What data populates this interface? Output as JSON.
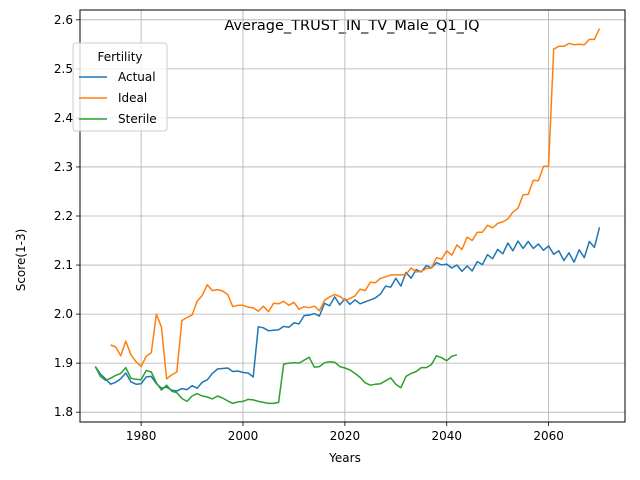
{
  "chart_data": {
    "type": "line",
    "title": "Average_TRUST_IN_TV_Male_Q1_IQ",
    "xlabel": "Years",
    "ylabel": "Score(1-3)",
    "xlim": [
      1968,
      2075
    ],
    "ylim": [
      1.78,
      2.62
    ],
    "xticks": [
      "1980",
      "2000",
      "2020",
      "2040",
      "2060"
    ],
    "xtick_values": [
      1980,
      2000,
      2020,
      2040,
      2060
    ],
    "yticks": [
      "1.8",
      "1.9",
      "2.0",
      "2.1",
      "2.2",
      "2.3",
      "2.4",
      "2.5",
      "2.6"
    ],
    "ytick_values": [
      1.8,
      1.9,
      2.0,
      2.1,
      2.2,
      2.3,
      2.4,
      2.5,
      2.6
    ],
    "grid": true,
    "legend": {
      "title": "Fertility",
      "position": "top-left"
    },
    "series": [
      {
        "name": "Actual",
        "color": "#1f77b4",
        "points": [
          [
            1971,
            1.893
          ],
          [
            1972,
            1.878
          ],
          [
            1973,
            1.868
          ],
          [
            1974,
            1.857
          ],
          [
            1975,
            1.861
          ],
          [
            1976,
            1.868
          ],
          [
            1977,
            1.88
          ],
          [
            1978,
            1.862
          ],
          [
            1979,
            1.857
          ],
          [
            1980,
            1.858
          ],
          [
            1981,
            1.872
          ],
          [
            1982,
            1.873
          ],
          [
            1983,
            1.858
          ],
          [
            1984,
            1.849
          ],
          [
            1985,
            1.851
          ],
          [
            1986,
            1.845
          ],
          [
            1987,
            1.843
          ],
          [
            1988,
            1.848
          ],
          [
            1989,
            1.846
          ],
          [
            1990,
            1.854
          ],
          [
            1991,
            1.849
          ],
          [
            1992,
            1.861
          ],
          [
            1993,
            1.866
          ],
          [
            1994,
            1.879
          ],
          [
            1995,
            1.888
          ],
          [
            1996,
            1.889
          ],
          [
            1997,
            1.89
          ],
          [
            1998,
            1.883
          ],
          [
            1999,
            1.884
          ],
          [
            2000,
            1.881
          ],
          [
            2001,
            1.88
          ],
          [
            2002,
            1.872
          ],
          [
            2003,
            1.974
          ],
          [
            2004,
            1.972
          ],
          [
            2005,
            1.966
          ],
          [
            2006,
            1.967
          ],
          [
            2007,
            1.968
          ],
          [
            2008,
            1.975
          ],
          [
            2009,
            1.973
          ],
          [
            2010,
            1.982
          ],
          [
            2011,
            1.98
          ],
          [
            2012,
            1.997
          ],
          [
            2013,
            1.998
          ],
          [
            2014,
            2.001
          ],
          [
            2015,
            1.996
          ],
          [
            2016,
            2.022
          ],
          [
            2017,
            2.017
          ],
          [
            2018,
            2.035
          ],
          [
            2019,
            2.019
          ],
          [
            2020,
            2.031
          ],
          [
            2021,
            2.02
          ],
          [
            2022,
            2.029
          ],
          [
            2023,
            2.021
          ],
          [
            2024,
            2.025
          ],
          [
            2025,
            2.029
          ],
          [
            2026,
            2.033
          ],
          [
            2027,
            2.041
          ],
          [
            2028,
            2.057
          ],
          [
            2029,
            2.055
          ],
          [
            2030,
            2.073
          ],
          [
            2031,
            2.057
          ],
          [
            2032,
            2.085
          ],
          [
            2033,
            2.073
          ],
          [
            2034,
            2.091
          ],
          [
            2035,
            2.086
          ],
          [
            2036,
            2.099
          ],
          [
            2037,
            2.094
          ],
          [
            2038,
            2.105
          ],
          [
            2039,
            2.1
          ],
          [
            2040,
            2.102
          ],
          [
            2041,
            2.094
          ],
          [
            2042,
            2.1
          ],
          [
            2043,
            2.087
          ],
          [
            2044,
            2.098
          ],
          [
            2045,
            2.088
          ],
          [
            2046,
            2.107
          ],
          [
            2047,
            2.101
          ],
          [
            2048,
            2.121
          ],
          [
            2049,
            2.113
          ],
          [
            2050,
            2.132
          ],
          [
            2051,
            2.123
          ],
          [
            2052,
            2.145
          ],
          [
            2053,
            2.129
          ],
          [
            2054,
            2.149
          ],
          [
            2055,
            2.134
          ],
          [
            2056,
            2.148
          ],
          [
            2057,
            2.134
          ],
          [
            2058,
            2.143
          ],
          [
            2059,
            2.13
          ],
          [
            2060,
            2.139
          ],
          [
            2061,
            2.122
          ],
          [
            2062,
            2.129
          ],
          [
            2063,
            2.109
          ],
          [
            2064,
            2.125
          ],
          [
            2065,
            2.106
          ],
          [
            2066,
            2.131
          ],
          [
            2067,
            2.115
          ],
          [
            2068,
            2.148
          ],
          [
            2069,
            2.136
          ],
          [
            2070,
            2.177
          ]
        ]
      },
      {
        "name": "Ideal",
        "color": "#ff7f0e",
        "points": [
          [
            1974,
            1.937
          ],
          [
            1975,
            1.933
          ],
          [
            1976,
            1.915
          ],
          [
            1977,
            1.945
          ],
          [
            1978,
            1.917
          ],
          [
            1979,
            1.903
          ],
          [
            1980,
            1.893
          ],
          [
            1981,
            1.914
          ],
          [
            1982,
            1.921
          ],
          [
            1983,
            2.0
          ],
          [
            1984,
            1.973
          ],
          [
            1985,
            1.868
          ],
          [
            1986,
            1.876
          ],
          [
            1987,
            1.882
          ],
          [
            1988,
            1.987
          ],
          [
            1989,
            1.993
          ],
          [
            1990,
            1.998
          ],
          [
            1991,
            2.026
          ],
          [
            1992,
            2.038
          ],
          [
            1993,
            2.06
          ],
          [
            1994,
            2.048
          ],
          [
            1995,
            2.05
          ],
          [
            1996,
            2.047
          ],
          [
            1997,
            2.04
          ],
          [
            1998,
            2.015
          ],
          [
            1999,
            2.018
          ],
          [
            2000,
            2.018
          ],
          [
            2001,
            2.014
          ],
          [
            2002,
            2.013
          ],
          [
            2003,
            2.006
          ],
          [
            2004,
            2.016
          ],
          [
            2005,
            2.005
          ],
          [
            2006,
            2.022
          ],
          [
            2007,
            2.021
          ],
          [
            2008,
            2.026
          ],
          [
            2009,
            2.018
          ],
          [
            2010,
            2.024
          ],
          [
            2011,
            2.01
          ],
          [
            2012,
            2.015
          ],
          [
            2013,
            2.013
          ],
          [
            2014,
            2.016
          ],
          [
            2015,
            2.007
          ],
          [
            2016,
            2.028
          ],
          [
            2017,
            2.035
          ],
          [
            2018,
            2.04
          ],
          [
            2019,
            2.036
          ],
          [
            2020,
            2.028
          ],
          [
            2021,
            2.032
          ],
          [
            2022,
            2.037
          ],
          [
            2023,
            2.051
          ],
          [
            2024,
            2.048
          ],
          [
            2025,
            2.065
          ],
          [
            2026,
            2.064
          ],
          [
            2027,
            2.073
          ],
          [
            2028,
            2.076
          ],
          [
            2029,
            2.08
          ],
          [
            2030,
            2.08
          ],
          [
            2031,
            2.08
          ],
          [
            2032,
            2.081
          ],
          [
            2033,
            2.094
          ],
          [
            2034,
            2.086
          ],
          [
            2035,
            2.087
          ],
          [
            2036,
            2.093
          ],
          [
            2037,
            2.094
          ],
          [
            2038,
            2.115
          ],
          [
            2039,
            2.112
          ],
          [
            2040,
            2.129
          ],
          [
            2041,
            2.12
          ],
          [
            2042,
            2.141
          ],
          [
            2043,
            2.132
          ],
          [
            2044,
            2.157
          ],
          [
            2045,
            2.15
          ],
          [
            2046,
            2.167
          ],
          [
            2047,
            2.167
          ],
          [
            2048,
            2.181
          ],
          [
            2049,
            2.176
          ],
          [
            2050,
            2.185
          ],
          [
            2051,
            2.188
          ],
          [
            2052,
            2.194
          ],
          [
            2053,
            2.208
          ],
          [
            2054,
            2.216
          ],
          [
            2055,
            2.243
          ],
          [
            2056,
            2.244
          ],
          [
            2057,
            2.273
          ],
          [
            2058,
            2.272
          ],
          [
            2059,
            2.301
          ],
          [
            2060,
            2.302
          ],
          [
            2061,
            2.54
          ],
          [
            2062,
            2.546
          ],
          [
            2063,
            2.546
          ],
          [
            2064,
            2.552
          ],
          [
            2065,
            2.549
          ],
          [
            2066,
            2.55
          ],
          [
            2067,
            2.549
          ],
          [
            2068,
            2.56
          ],
          [
            2069,
            2.56
          ],
          [
            2070,
            2.582
          ]
        ]
      },
      {
        "name": "Sterile",
        "color": "#2ca02c",
        "points": [
          [
            1971,
            1.893
          ],
          [
            1972,
            1.873
          ],
          [
            1973,
            1.865
          ],
          [
            1974,
            1.869
          ],
          [
            1975,
            1.875
          ],
          [
            1976,
            1.879
          ],
          [
            1977,
            1.891
          ],
          [
            1978,
            1.869
          ],
          [
            1979,
            1.867
          ],
          [
            1980,
            1.866
          ],
          [
            1981,
            1.885
          ],
          [
            1982,
            1.882
          ],
          [
            1983,
            1.86
          ],
          [
            1984,
            1.845
          ],
          [
            1985,
            1.855
          ],
          [
            1986,
            1.843
          ],
          [
            1987,
            1.84
          ],
          [
            1988,
            1.828
          ],
          [
            1989,
            1.822
          ],
          [
            1990,
            1.833
          ],
          [
            1991,
            1.838
          ],
          [
            1992,
            1.833
          ],
          [
            1993,
            1.831
          ],
          [
            1994,
            1.827
          ],
          [
            1995,
            1.833
          ],
          [
            1996,
            1.829
          ],
          [
            1997,
            1.823
          ],
          [
            1998,
            1.818
          ],
          [
            1999,
            1.821
          ],
          [
            2000,
            1.822
          ],
          [
            2001,
            1.826
          ],
          [
            2002,
            1.825
          ],
          [
            2003,
            1.822
          ],
          [
            2004,
            1.82
          ],
          [
            2005,
            1.818
          ],
          [
            2006,
            1.818
          ],
          [
            2007,
            1.82
          ],
          [
            2008,
            1.898
          ],
          [
            2009,
            1.9
          ],
          [
            2010,
            1.901
          ],
          [
            2011,
            1.9
          ],
          [
            2012,
            1.906
          ],
          [
            2013,
            1.912
          ],
          [
            2014,
            1.892
          ],
          [
            2015,
            1.893
          ],
          [
            2016,
            1.901
          ],
          [
            2017,
            1.903
          ],
          [
            2018,
            1.902
          ],
          [
            2019,
            1.893
          ],
          [
            2020,
            1.89
          ],
          [
            2021,
            1.886
          ],
          [
            2022,
            1.879
          ],
          [
            2023,
            1.871
          ],
          [
            2024,
            1.86
          ],
          [
            2025,
            1.855
          ],
          [
            2026,
            1.857
          ],
          [
            2027,
            1.858
          ],
          [
            2028,
            1.864
          ],
          [
            2029,
            1.87
          ],
          [
            2030,
            1.857
          ],
          [
            2031,
            1.85
          ],
          [
            2032,
            1.873
          ],
          [
            2033,
            1.879
          ],
          [
            2034,
            1.883
          ],
          [
            2035,
            1.891
          ],
          [
            2036,
            1.891
          ],
          [
            2037,
            1.897
          ],
          [
            2038,
            1.915
          ],
          [
            2039,
            1.911
          ],
          [
            2040,
            1.905
          ],
          [
            2041,
            1.914
          ],
          [
            2042,
            1.917
          ]
        ]
      }
    ]
  }
}
